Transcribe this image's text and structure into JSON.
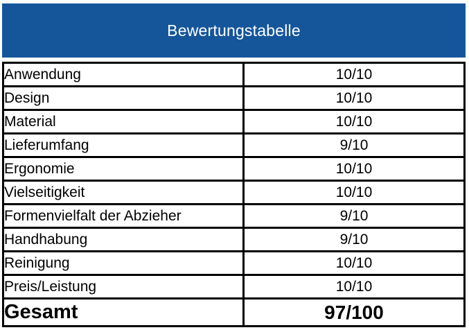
{
  "header": {
    "title": "Bewertungstabelle",
    "background_color": "#15569B",
    "text_color": "#FFFFFF"
  },
  "table": {
    "border_color": "#000000",
    "rows": [
      {
        "label": "Anwendung",
        "score": "10/10"
      },
      {
        "label": "Design",
        "score": "10/10"
      },
      {
        "label": "Material",
        "score": "10/10"
      },
      {
        "label": "Lieferumfang",
        "score": "9/10"
      },
      {
        "label": "Ergonomie",
        "score": "10/10"
      },
      {
        "label": "Vielseitigkeit",
        "score": "10/10"
      },
      {
        "label": "Formenvielfalt der Abzieher",
        "score": "9/10"
      },
      {
        "label": "Handhabung",
        "score": "9/10"
      },
      {
        "label": "Reinigung",
        "score": "10/10"
      },
      {
        "label": "Preis/Leistung",
        "score": "10/10"
      }
    ],
    "total": {
      "label": "Gesamt",
      "score": "97/100"
    }
  }
}
